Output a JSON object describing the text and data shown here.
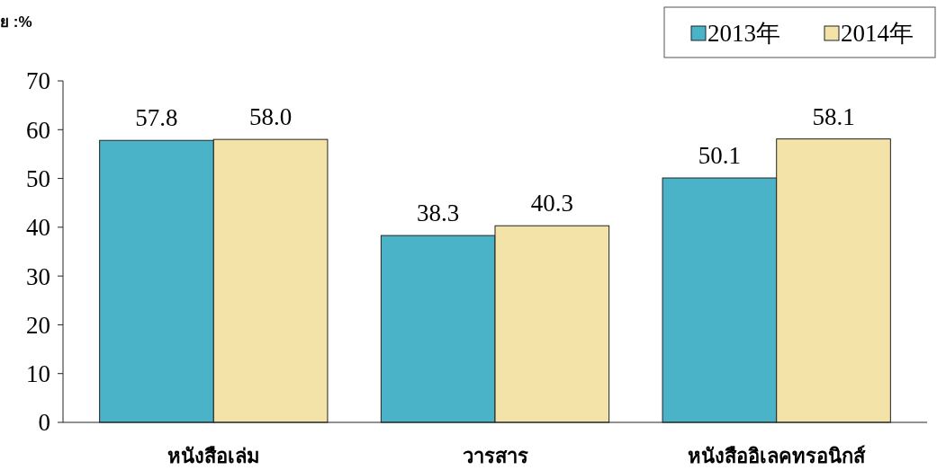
{
  "chart_data": {
    "type": "bar",
    "ylabel": "ย :%",
    "categories": [
      "หนังสือเล่ม",
      "วารสาร",
      "หนังสืออิเลคทรอนิกส์"
    ],
    "series": [
      {
        "name": "2013年",
        "color": "#4bb3c8",
        "values": [
          57.8,
          38.3,
          50.1
        ]
      },
      {
        "name": "2014年",
        "color": "#f3e3a8",
        "values": [
          58.0,
          40.3,
          58.1
        ]
      }
    ],
    "ylim": [
      0,
      70
    ],
    "yticks": [
      0,
      10,
      20,
      30,
      40,
      50,
      60,
      70
    ],
    "value_labels": [
      [
        "57.8",
        "38.3",
        "50.1"
      ],
      [
        "58.0",
        "40.3",
        "58.1"
      ]
    ],
    "legend": "top right",
    "grid": false
  }
}
